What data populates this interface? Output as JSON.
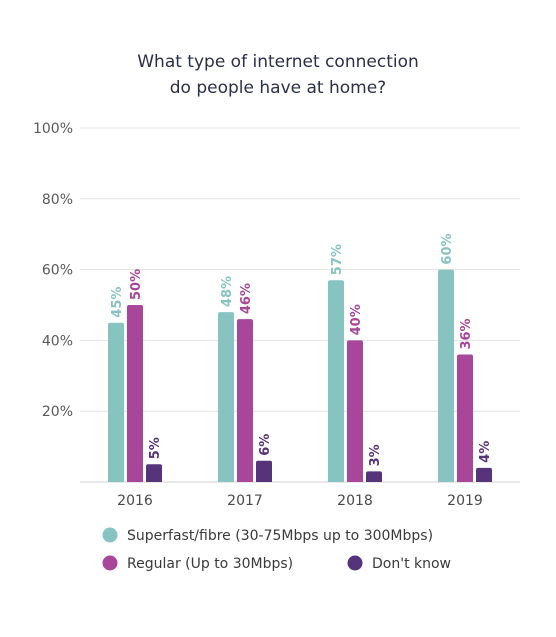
{
  "chart_data": {
    "type": "bar",
    "title": [
      "What type of internet connection",
      "do people have at home?"
    ],
    "categories": [
      "2016",
      "2017",
      "2018",
      "2019"
    ],
    "series": [
      {
        "name": "Superfast/fibre (30-75Mbps up to 300Mbps)",
        "values": [
          45,
          48,
          57,
          60
        ],
        "labels": [
          "45%",
          "48%",
          "57%",
          "60%"
        ],
        "color": "#87c4c1"
      },
      {
        "name": "Regular (Up to 30Mbps)",
        "values": [
          50,
          46,
          40,
          36
        ],
        "labels": [
          "50%",
          "46%",
          "40%",
          "36%"
        ],
        "color": "#a8479a"
      },
      {
        "name": "Don't know",
        "values": [
          5,
          6,
          3,
          4
        ],
        "labels": [
          "5%",
          "6%",
          "3%",
          "4%"
        ],
        "color": "#55347a"
      }
    ],
    "yticks": [
      "20%",
      "40%",
      "60%",
      "80%",
      "100%"
    ],
    "ylim": [
      0,
      100
    ],
    "grid": true,
    "legend": "bottom"
  }
}
